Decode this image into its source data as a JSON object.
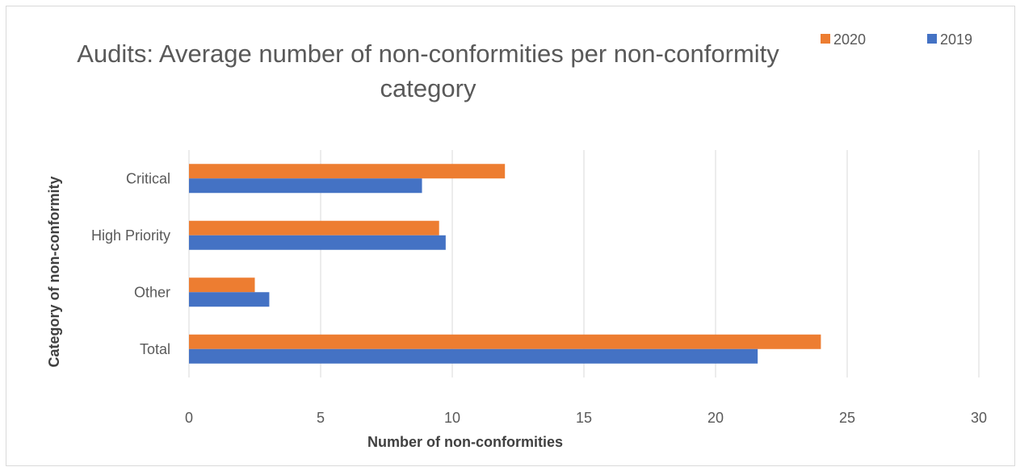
{
  "chart_data": {
    "type": "bar",
    "orientation": "horizontal",
    "title_lines": [
      "Audits: Average number of non-conformities per non-conformity",
      "category"
    ],
    "xlabel": "Number of non-conformities",
    "ylabel": "Category of non-conformity",
    "categories": [
      "Critical",
      "High Priority",
      "Other",
      "Total"
    ],
    "series": [
      {
        "name": "2020",
        "color": "#ed7d31",
        "values": [
          12,
          9.5,
          2.5,
          24
        ]
      },
      {
        "name": "2019",
        "color": "#4472c4",
        "values": [
          8.85,
          9.75,
          3.05,
          21.6
        ]
      }
    ],
    "xlim": [
      0,
      30
    ],
    "xticks": [
      "0",
      "5",
      "10",
      "15",
      "20",
      "25",
      "30"
    ],
    "grid": "vertical",
    "legend_position": "top-right"
  }
}
